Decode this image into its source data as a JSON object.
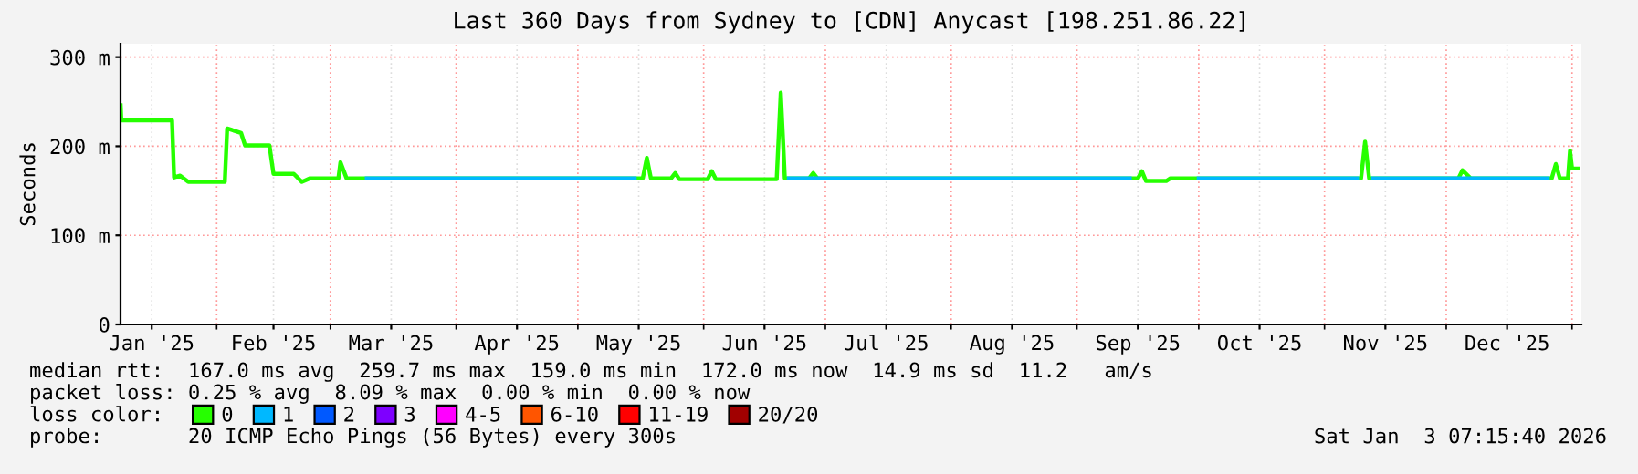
{
  "chart_data": {
    "type": "line",
    "title": "Last 360 Days from Sydney to [CDN] Anycast [198.251.86.22]",
    "ylabel": "Seconds",
    "xlim": [
      "2025-01-08T07:15",
      "2026-01-03T07:15"
    ],
    "xticks": [
      {
        "value": "2025-01-16",
        "label": "Jan '25"
      },
      {
        "value": "2025-02-01",
        "label": null
      },
      {
        "value": "2025-02-15",
        "label": "Feb '25"
      },
      {
        "value": "2025-03-01",
        "label": null
      },
      {
        "value": "2025-03-16",
        "label": "Mar '25"
      },
      {
        "value": "2025-04-01",
        "label": null
      },
      {
        "value": "2025-04-16",
        "label": "Apr '25"
      },
      {
        "value": "2025-05-01",
        "label": null
      },
      {
        "value": "2025-05-16",
        "label": "May '25"
      },
      {
        "value": "2025-06-01",
        "label": null
      },
      {
        "value": "2025-06-16",
        "label": "Jun '25"
      },
      {
        "value": "2025-07-01",
        "label": null
      },
      {
        "value": "2025-07-16",
        "label": "Jul '25"
      },
      {
        "value": "2025-08-01",
        "label": null
      },
      {
        "value": "2025-08-16",
        "label": "Aug '25"
      },
      {
        "value": "2025-09-01",
        "label": null
      },
      {
        "value": "2025-09-16",
        "label": "Sep '25"
      },
      {
        "value": "2025-10-01",
        "label": null
      },
      {
        "value": "2025-10-16",
        "label": "Oct '25"
      },
      {
        "value": "2025-11-01",
        "label": null
      },
      {
        "value": "2025-11-16",
        "label": "Nov '25"
      },
      {
        "value": "2025-12-01",
        "label": null
      },
      {
        "value": "2025-12-16",
        "label": "Dec '25"
      },
      {
        "value": "2026-01-01",
        "label": null
      }
    ],
    "ylim": [
      0,
      315
    ],
    "yticks": [
      0,
      {
        "value": 100,
        "label": "100 m"
      },
      {
        "value": 200,
        "label": "200 m"
      },
      {
        "value": 300,
        "label": "300 m"
      }
    ],
    "grid": true,
    "legend": "bottom",
    "legend_title": "loss color:",
    "series": [
      {
        "name": "0",
        "color": "#26ff00",
        "x": [
          "2025-01-08T08:00",
          "2025-01-08T12:00",
          "2025-01-21",
          "2025-01-21T12:00",
          "2025-01-23",
          "2025-01-25",
          "2025-02-03",
          "2025-02-03T14:00",
          "2025-02-07",
          "2025-02-08",
          "2025-02-14",
          "2025-02-15",
          "2025-02-20",
          "2025-02-22",
          "2025-02-24",
          "2025-03-03",
          "2025-03-03T12:00",
          "2025-03-05",
          "2025-05-17",
          "2025-05-18",
          "2025-05-19",
          "2025-05-24",
          "2025-05-25",
          "2025-05-26",
          "2025-06-02",
          "2025-06-03",
          "2025-06-04",
          "2025-06-19",
          "2025-06-20",
          "2025-06-20T12:00",
          "2025-06-21",
          "2025-06-27",
          "2025-06-28",
          "2025-06-29",
          "2025-09-16",
          "2025-09-17",
          "2025-09-18",
          "2025-09-23",
          "2025-09-24",
          "2025-11-10",
          "2025-11-11",
          "2025-11-12",
          "2025-12-04",
          "2025-12-05",
          "2025-12-07",
          "2025-12-27",
          "2025-12-28",
          "2025-12-29",
          "2025-12-31",
          "2025-12-31T12:00",
          "2026-01-01",
          "2026-01-02T12:00"
        ],
        "values": [
          246,
          229,
          229,
          165,
          167,
          160,
          160,
          220,
          215,
          201,
          201,
          169,
          169,
          160,
          164,
          164,
          182,
          164,
          164,
          187,
          164,
          164,
          170,
          163,
          163,
          172,
          163,
          163,
          260,
          213,
          164,
          164,
          170,
          164,
          164,
          172,
          161,
          161,
          164,
          164,
          205,
          164,
          164,
          173,
          164,
          164,
          180,
          164,
          164,
          195,
          175,
          175
        ]
      },
      {
        "name": "1",
        "color": "#00b8ff",
        "x": [
          "2025-03-10",
          "2025-05-15",
          "2025-05-16",
          "2025-06-22",
          "2025-09-14",
          "2025-09-15",
          "2025-10-01",
          "2025-11-09",
          "2025-11-10",
          "2025-11-13",
          "2025-12-26"
        ],
        "values": [
          164,
          164,
          null,
          164,
          164,
          null,
          164,
          164,
          null,
          164,
          164
        ]
      },
      {
        "name": "2",
        "color": "#0059ff"
      },
      {
        "name": "3",
        "color": "#7e00ff"
      },
      {
        "name": "4-5",
        "color": "#ff00ff"
      },
      {
        "name": "6-10",
        "color": "#ff5500"
      },
      {
        "name": "11-19",
        "color": "#ff0000"
      },
      {
        "name": "20/20",
        "color": "#a10000"
      }
    ],
    "annotations": [
      "median rtt:  167.0 ms avg  259.7 ms max  159.0 ms min  172.0 ms now  14.9 ms sd  11.2   am/s",
      "packet loss: 0.25 % avg  8.09 % max  0.00 % min  0.00 % now",
      "probe:       20 ICMP Echo Pings (56 Bytes) every 300s",
      "Sat Jan  3 07:15:40 2026"
    ]
  }
}
